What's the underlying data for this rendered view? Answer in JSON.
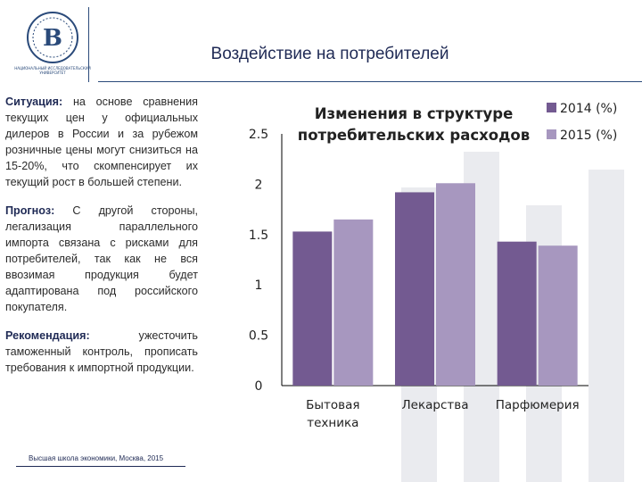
{
  "header": {
    "title": "Воздействие на потребителей",
    "logo_caption": "НАЦИОНАЛЬНЫЙ ИССЛЕДОВАТЕЛЬСКИЙ УНИВЕРСИТЕТ"
  },
  "text": {
    "situation_label": "Ситуация:",
    "situation_body": " на основе сравнения текущих цен у официальных дилеров в России и за рубежом розничные цены могут снизиться на 15-20%, что скомпенсирует их текущий рост в большей степени.",
    "forecast_label": "Прогноз:",
    "forecast_body": " С другой стороны, легализация параллельного импорта связана с рисками для потребителей, так как не вся ввозимая продукция будет адаптирована под российского покупателя.",
    "recommendation_label": "Рекомендация:",
    "recommendation_body": " ужесточить таможенный контроль, прописать требования к импортной продукции."
  },
  "footer": {
    "text": "Высшая школа экономики, Москва, 2015"
  },
  "colors": {
    "series_2014": "#735a91",
    "series_2015": "#a797bf",
    "accent": "#1f2a55"
  },
  "chart_data": {
    "type": "bar",
    "title": "Изменения в структуре потребительских расходов",
    "title_lines": [
      "Изменения в структуре",
      "потребительских расходов"
    ],
    "categories": [
      "Бытовая техника",
      "Лекарства",
      "Парфюмерия"
    ],
    "category_lines": [
      [
        "Бытовая",
        "техника"
      ],
      [
        "Лекарства"
      ],
      [
        "Парфюмерия"
      ]
    ],
    "series": [
      {
        "name": "2014 (%)",
        "values": [
          1.53,
          1.92,
          1.43
        ]
      },
      {
        "name": "2015 (%)",
        "values": [
          1.65,
          2.01,
          1.39
        ]
      }
    ],
    "ylim": [
      0,
      2.5
    ],
    "yticks": [
      "0",
      "0.5",
      "1",
      "1.5",
      "2",
      "2.5"
    ],
    "grid": false,
    "legend": "top-right"
  }
}
